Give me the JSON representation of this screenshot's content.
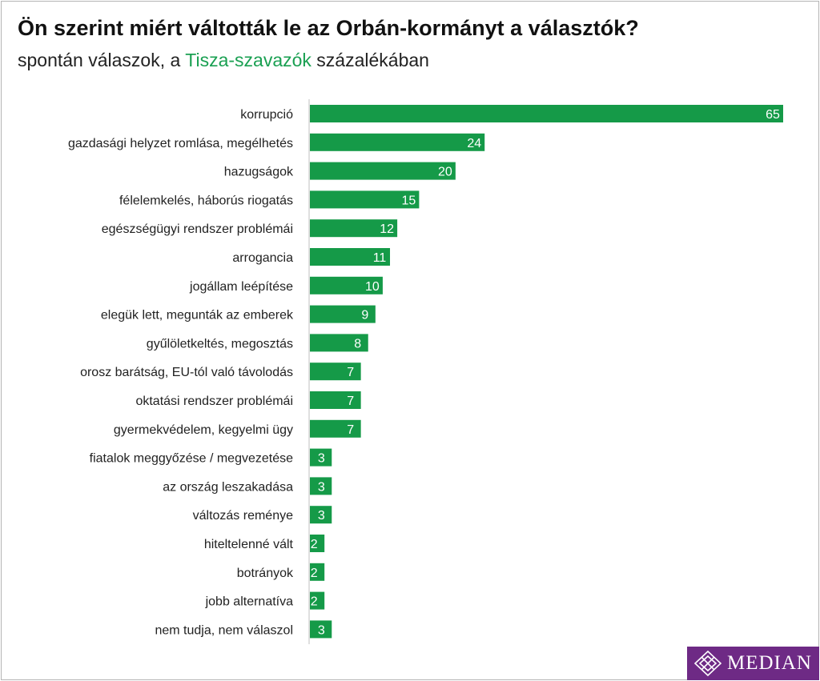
{
  "header": {
    "title": "Ön szerint miért váltották le az Orbán-kormányt a választók?",
    "subtitle_pre": "spontán válaszok, a ",
    "subtitle_accent": "Tisza-szavazók",
    "subtitle_post": " százalékában"
  },
  "logo": {
    "text": "MEDIAN"
  },
  "colors": {
    "bar": "#159a48",
    "accent": "#1aa052",
    "brand": "#6e2a85"
  },
  "chart_data": {
    "type": "bar",
    "orientation": "horizontal",
    "categories": [
      "korrupció",
      "gazdasági helyzet romlása, megélhetés",
      "hazugságok",
      "félelemkelés, háborús riogatás",
      "egészségügyi rendszer problémái",
      "arrogancia",
      "jogállam leépítése",
      "elegük lett, megunták az emberek",
      "gyűlöletkeltés, megosztás",
      "orosz barátság, EU-tól való távolodás",
      "oktatási rendszer problémái",
      "gyermekvédelem, kegyelmi ügy",
      "fiatalok meggyőzése / megvezetése",
      "az ország leszakadása",
      "változás reménye",
      "hiteltelenné vált",
      "botrányok",
      "jobb alternatíva",
      "nem tudja, nem válaszol"
    ],
    "values": [
      65,
      24,
      20,
      15,
      12,
      11,
      10,
      9,
      8,
      7,
      7,
      7,
      3,
      3,
      3,
      2,
      2,
      2,
      3
    ],
    "value_labels": [
      "65",
      "24",
      "20",
      "15",
      "12",
      "11",
      "10",
      "9",
      "8",
      "7",
      "7",
      "7",
      "3",
      "3",
      "3",
      "2",
      "2",
      "2",
      "3"
    ],
    "xlim": [
      0,
      65
    ],
    "grid": false,
    "legend": false
  }
}
